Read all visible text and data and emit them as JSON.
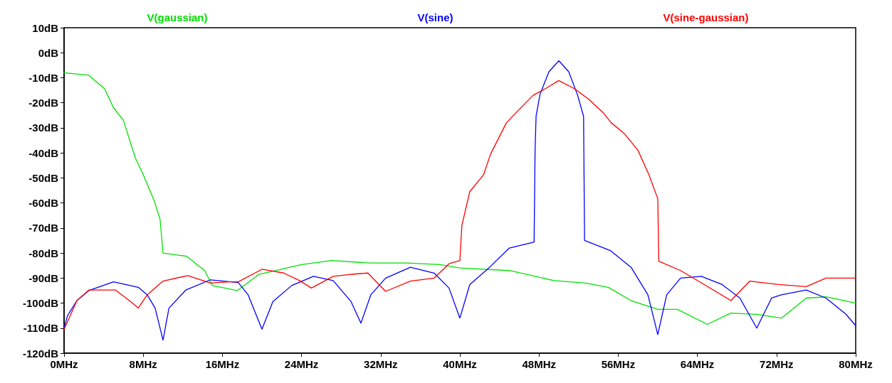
{
  "chart_data": {
    "type": "line",
    "legend": "top",
    "grid": false,
    "marker": "none",
    "line_style": "solid",
    "xlim": [
      0,
      80
    ],
    "ylim": [
      -120,
      10
    ],
    "xticks": [
      {
        "value": 0,
        "label": "0MHz"
      },
      {
        "value": 8,
        "label": "8MHz"
      },
      {
        "value": 16,
        "label": "16MHz"
      },
      {
        "value": 24,
        "label": "24MHz"
      },
      {
        "value": 32,
        "label": "32MHz"
      },
      {
        "value": 40,
        "label": "40MHz"
      },
      {
        "value": 48,
        "label": "48MHz"
      },
      {
        "value": 56,
        "label": "56MHz"
      },
      {
        "value": 64,
        "label": "64MHz"
      },
      {
        "value": 72,
        "label": "72MHz"
      },
      {
        "value": 80,
        "label": "80MHz"
      }
    ],
    "yticks": [
      {
        "value": 10,
        "label": "10dB"
      },
      {
        "value": 0,
        "label": "0dB"
      },
      {
        "value": -10,
        "label": "-10dB"
      },
      {
        "value": -20,
        "label": "-20dB"
      },
      {
        "value": -30,
        "label": "-30dB"
      },
      {
        "value": -40,
        "label": "-40dB"
      },
      {
        "value": -50,
        "label": "-50dB"
      },
      {
        "value": -60,
        "label": "-60dB"
      },
      {
        "value": -70,
        "label": "-70dB"
      },
      {
        "value": -80,
        "label": "-80dB"
      },
      {
        "value": -90,
        "label": "-90dB"
      },
      {
        "value": -100,
        "label": "-100dB"
      },
      {
        "value": -110,
        "label": "-110dB"
      },
      {
        "value": -120,
        "label": "-120dB"
      }
    ],
    "series": [
      {
        "name": "V(gaussian)",
        "color": "#00e000",
        "x": [
          0,
          2.5,
          4.1,
          5,
          6,
          7.2,
          8,
          9.1,
          9.7,
          10,
          12.4,
          14.2,
          15,
          17.5,
          19.7,
          24,
          27,
          31,
          34.6,
          38,
          40,
          45,
          49.5,
          52.7,
          55,
          57.3,
          60,
          62,
          65,
          67.4,
          70,
          72.5,
          75,
          77,
          80
        ],
        "values": [
          -8,
          -9,
          -14.4,
          -22,
          -27,
          -42,
          -48.7,
          -59,
          -66.5,
          -80,
          -81.3,
          -87,
          -93,
          -95,
          -88.5,
          -84.6,
          -83,
          -84,
          -84,
          -84.6,
          -86,
          -87,
          -91,
          -92,
          -93.7,
          -99,
          -102.5,
          -102.5,
          -108.5,
          -104,
          -104.5,
          -106,
          -98,
          -97.5,
          -100
        ]
      },
      {
        "name": "V(sine)",
        "color": "#0000ff",
        "x": [
          0,
          0.35,
          1.3,
          2.5,
          5,
          7.5,
          8.4,
          9.2,
          10,
          10.6,
          12.3,
          14.8,
          17.6,
          18.6,
          20,
          21.1,
          23,
          25.2,
          27.2,
          29,
          30,
          31,
          32.5,
          35,
          37.4,
          38.9,
          40,
          41,
          43,
          45,
          47.5,
          47.6,
          47.7,
          48.1,
          49,
          50,
          51,
          51.9,
          52.5,
          52.6,
          55.2,
          57.3,
          59,
          60,
          60.9,
          62.3,
          64.4,
          66.5,
          68.3,
          70,
          71.5,
          72.5,
          75,
          77,
          79,
          80
        ],
        "values": [
          -110,
          -105,
          -99,
          -95,
          -91.5,
          -93.7,
          -96.7,
          -102,
          -114.8,
          -102,
          -94.8,
          -90.7,
          -91.8,
          -96.7,
          -110.4,
          -99.4,
          -93,
          -89.3,
          -91,
          -99.4,
          -108,
          -96.7,
          -90,
          -85.7,
          -88,
          -94,
          -106,
          -92.6,
          -85.7,
          -78,
          -75.6,
          -39,
          -25.4,
          -16.6,
          -7.6,
          -3.2,
          -7.6,
          -17,
          -25.4,
          -75,
          -79,
          -85.7,
          -96.7,
          -112.6,
          -96.7,
          -90,
          -89.3,
          -92.6,
          -98,
          -110,
          -98,
          -96.7,
          -94.8,
          -98,
          -104.4,
          -109
        ]
      },
      {
        "name": "V(sine-gaussian)",
        "color": "#ff0000",
        "x": [
          0,
          1.3,
          2.5,
          5.2,
          6.6,
          7.5,
          8.4,
          10,
          12.5,
          14.8,
          16.7,
          17.6,
          20,
          22.2,
          23.8,
          25,
          27.2,
          29,
          30.7,
          32.5,
          35,
          37.4,
          38.9,
          40,
          40.2,
          41,
          42.4,
          43.1,
          44.7,
          46,
          47.4,
          48.8,
          50,
          51.6,
          53,
          54.5,
          55.3,
          56.6,
          58,
          59.1,
          60,
          60.1,
          62.3,
          64.7,
          67.4,
          69.3,
          72.2,
          75,
          77,
          80
        ],
        "values": [
          -110.5,
          -99,
          -94.8,
          -94.8,
          -99,
          -102,
          -96.7,
          -91.2,
          -89,
          -92,
          -91.5,
          -91.5,
          -86.5,
          -88,
          -91,
          -94,
          -89.3,
          -88.5,
          -88,
          -95.3,
          -91.2,
          -90,
          -84.3,
          -83,
          -69,
          -55.5,
          -48.7,
          -40.5,
          -28,
          -22.6,
          -17,
          -14,
          -11.1,
          -14.4,
          -18.5,
          -24,
          -28,
          -32.2,
          -39,
          -48.7,
          -58.3,
          -83.3,
          -87,
          -92.6,
          -99,
          -91.2,
          -92.6,
          -93.4,
          -90,
          -90
        ]
      }
    ]
  }
}
